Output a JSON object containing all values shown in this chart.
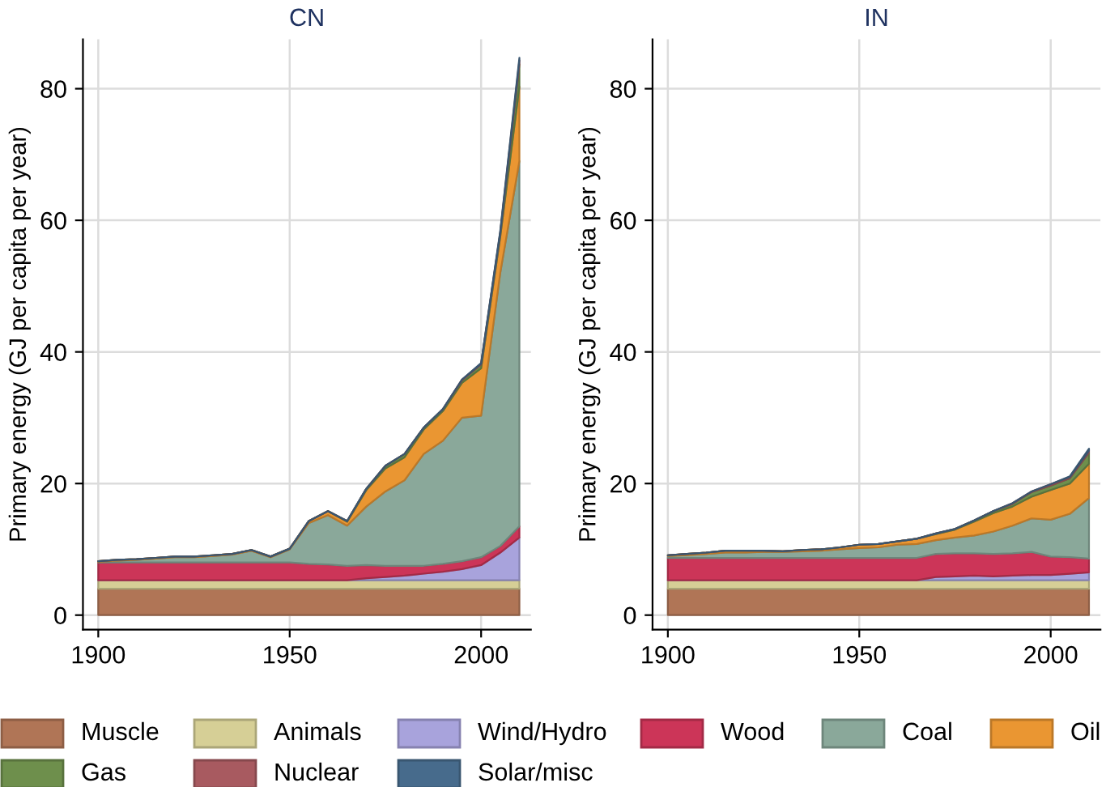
{
  "chart_data": [
    {
      "type": "area",
      "title": "CN",
      "ylabel": "Primary energy (GJ per capita per year)",
      "stacked": true,
      "legend": "bottom",
      "grid": true,
      "x": [
        1900,
        1905,
        1910,
        1915,
        1920,
        1925,
        1930,
        1935,
        1940,
        1945,
        1950,
        1955,
        1960,
        1965,
        1970,
        1975,
        1980,
        1985,
        1990,
        1995,
        2000,
        2005,
        2010
      ],
      "xlim": [
        1896,
        2013
      ],
      "xticks": [
        1900,
        1950,
        2000
      ],
      "ylim": [
        -2.2,
        87.5
      ],
      "yticks": [
        0,
        20,
        40,
        60,
        80
      ],
      "series": [
        {
          "name": "Muscle",
          "color": "#b07556",
          "values": [
            4,
            4,
            4,
            4,
            4,
            4,
            4,
            4,
            4,
            4,
            4,
            4,
            4,
            4,
            4,
            4,
            4,
            4,
            4,
            4,
            4,
            4,
            4
          ]
        },
        {
          "name": "Animals",
          "color": "#d6cf96",
          "values": [
            1.3,
            1.3,
            1.3,
            1.3,
            1.3,
            1.3,
            1.3,
            1.3,
            1.3,
            1.3,
            1.3,
            1.3,
            1.3,
            1.3,
            1.3,
            1.3,
            1.3,
            1.3,
            1.3,
            1.3,
            1.3,
            1.3,
            1.3
          ]
        },
        {
          "name": "Wind/Hydro",
          "color": "#a8a3dc",
          "values": [
            0,
            0,
            0,
            0,
            0,
            0,
            0,
            0,
            0,
            0,
            0,
            0,
            0,
            0,
            0.3,
            0.5,
            0.7,
            1.0,
            1.3,
            1.7,
            2.3,
            4.2,
            6.5
          ]
        },
        {
          "name": "Wood",
          "color": "#cc3558",
          "values": [
            2.7,
            2.7,
            2.7,
            2.7,
            2.7,
            2.7,
            2.7,
            2.7,
            2.7,
            2.7,
            2.7,
            2.5,
            2.4,
            2.2,
            2.0,
            1.7,
            1.5,
            1.2,
            1.2,
            1.2,
            1.2,
            1.0,
            1.7
          ]
        },
        {
          "name": "Coal",
          "color": "#8aa89a",
          "values": [
            0.1,
            0.3,
            0.4,
            0.6,
            0.8,
            0.8,
            1.0,
            1.2,
            1.8,
            0.8,
            2.0,
            6.2,
            7.5,
            6.1,
            8.9,
            11.3,
            13.0,
            17.0,
            18.7,
            21.8,
            21.5,
            41.5,
            55.5
          ]
        },
        {
          "name": "Oil",
          "color": "#ea9632",
          "values": [
            0.1,
            0.1,
            0.1,
            0.1,
            0.1,
            0.1,
            0.1,
            0.1,
            0.1,
            0.1,
            0.1,
            0.3,
            0.6,
            0.6,
            2.5,
            3.5,
            3.5,
            3.7,
            4.5,
            5.3,
            7.2,
            5.5,
            11.3
          ]
        },
        {
          "name": "Gas",
          "color": "#6e8f4c",
          "values": [
            0,
            0,
            0,
            0,
            0,
            0,
            0,
            0,
            0,
            0,
            0,
            0,
            0,
            0.1,
            0.2,
            0.4,
            0.5,
            0.3,
            0.3,
            0.4,
            0.6,
            0.5,
            3.4
          ]
        },
        {
          "name": "Nuclear",
          "color": "#a85a60",
          "values": [
            0,
            0,
            0,
            0,
            0,
            0,
            0,
            0,
            0,
            0,
            0,
            0,
            0,
            0,
            0,
            0,
            0,
            0,
            0,
            0.1,
            0.1,
            0.2,
            0.6
          ]
        },
        {
          "name": "Solar/misc",
          "color": "#476b8c",
          "values": [
            0,
            0,
            0,
            0,
            0,
            0,
            0,
            0,
            0,
            0,
            0,
            0,
            0,
            0,
            0,
            0,
            0,
            0,
            0,
            0,
            0.1,
            0.2,
            0.4
          ]
        }
      ]
    },
    {
      "type": "area",
      "title": "IN",
      "ylabel": "Primary energy (GJ per capita per year)",
      "stacked": true,
      "legend": "bottom",
      "grid": true,
      "x": [
        1900,
        1905,
        1910,
        1915,
        1920,
        1925,
        1930,
        1935,
        1940,
        1945,
        1950,
        1955,
        1960,
        1965,
        1970,
        1975,
        1980,
        1985,
        1990,
        1995,
        2000,
        2005,
        2010
      ],
      "xlim": [
        1896,
        2013
      ],
      "xticks": [
        1900,
        1950,
        2000
      ],
      "ylim": [
        -2.2,
        87.5
      ],
      "yticks": [
        0,
        20,
        40,
        60,
        80
      ],
      "series": [
        {
          "name": "Muscle",
          "color": "#b07556",
          "values": [
            4,
            4,
            4,
            4,
            4,
            4,
            4,
            4,
            4,
            4,
            4,
            4,
            4,
            4,
            4,
            4,
            4,
            4,
            4,
            4,
            4,
            4,
            4
          ]
        },
        {
          "name": "Animals",
          "color": "#d6cf96",
          "values": [
            1.3,
            1.3,
            1.3,
            1.3,
            1.3,
            1.3,
            1.3,
            1.3,
            1.3,
            1.3,
            1.3,
            1.3,
            1.3,
            1.3,
            1.3,
            1.3,
            1.3,
            1.3,
            1.3,
            1.3,
            1.3,
            1.3,
            1.3
          ]
        },
        {
          "name": "Wind/Hydro",
          "color": "#a8a3dc",
          "values": [
            0,
            0,
            0,
            0,
            0,
            0,
            0,
            0,
            0,
            0,
            0,
            0,
            0,
            0,
            0.5,
            0.6,
            0.7,
            0.6,
            0.7,
            0.8,
            0.8,
            1.0,
            1.2
          ]
        },
        {
          "name": "Wood",
          "color": "#cc3558",
          "values": [
            3.4,
            3.4,
            3.4,
            3.4,
            3.4,
            3.4,
            3.4,
            3.4,
            3.4,
            3.4,
            3.4,
            3.4,
            3.4,
            3.4,
            3.5,
            3.5,
            3.4,
            3.4,
            3.4,
            3.5,
            2.8,
            2.5,
            2.1
          ]
        },
        {
          "name": "Coal",
          "color": "#8aa89a",
          "values": [
            0.3,
            0.4,
            0.6,
            0.8,
            0.8,
            0.9,
            0.9,
            1.0,
            1.1,
            1.3,
            1.5,
            1.6,
            2.0,
            2.1,
            2.1,
            2.4,
            2.7,
            3.4,
            4.2,
            5.1,
            5.6,
            6.6,
            9.2
          ]
        },
        {
          "name": "Oil",
          "color": "#ea9632",
          "values": [
            0.1,
            0.2,
            0.2,
            0.3,
            0.3,
            0.2,
            0.1,
            0.2,
            0.2,
            0.3,
            0.5,
            0.5,
            0.5,
            0.8,
            0.9,
            1.2,
            2.1,
            2.8,
            2.9,
            3.3,
            4.5,
            4.6,
            5.2
          ]
        },
        {
          "name": "Gas",
          "color": "#6e8f4c",
          "values": [
            0,
            0,
            0,
            0,
            0,
            0,
            0,
            0,
            0,
            0,
            0,
            0,
            0,
            0,
            0.1,
            0.1,
            0.2,
            0.3,
            0.4,
            0.7,
            0.7,
            0.8,
            1.7
          ]
        },
        {
          "name": "Nuclear",
          "color": "#a85a60",
          "values": [
            0,
            0,
            0,
            0,
            0,
            0,
            0,
            0,
            0,
            0,
            0,
            0,
            0,
            0,
            0,
            0,
            0,
            0,
            0.1,
            0.1,
            0.2,
            0.2,
            0.3
          ]
        },
        {
          "name": "Solar/misc",
          "color": "#476b8c",
          "values": [
            0,
            0,
            0,
            0,
            0,
            0,
            0,
            0,
            0,
            0,
            0,
            0,
            0,
            0,
            0,
            0,
            0,
            0,
            0,
            0,
            0,
            0.1,
            0.3
          ]
        }
      ]
    }
  ]
}
